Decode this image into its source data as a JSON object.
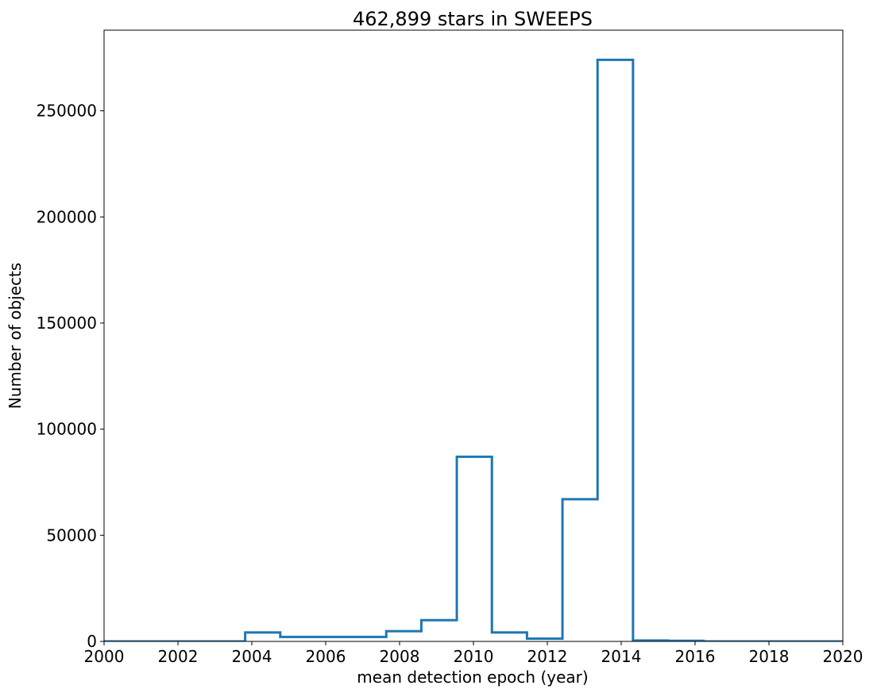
{
  "chart_data": {
    "type": "histogram",
    "title": "462,899 stars in SWEEPS",
    "xlabel": "mean detection epoch (year)",
    "ylabel": "Number of objects",
    "xlim": [
      2000,
      2020
    ],
    "ylim": [
      0,
      288000
    ],
    "x_ticks": [
      2000,
      2002,
      2004,
      2006,
      2008,
      2010,
      2012,
      2014,
      2016,
      2018,
      2020
    ],
    "x_tick_labels": [
      "2000",
      "2002",
      "2004",
      "2006",
      "2008",
      "2010",
      "2012",
      "2014",
      "2016",
      "2018",
      "2020"
    ],
    "y_ticks": [
      0,
      50000,
      100000,
      150000,
      200000,
      250000
    ],
    "y_tick_labels": [
      "0",
      "50000",
      "100000",
      "150000",
      "200000",
      "250000"
    ],
    "bin_edges": [
      1999.9,
      2000.86,
      2001.81,
      2002.77,
      2003.82,
      2004.77,
      2005.73,
      2006.68,
      2007.64,
      2008.59,
      2009.55,
      2010.5,
      2011.45,
      2012.41,
      2013.36,
      2014.32,
      2015.27,
      2016.23,
      2017.18,
      2018.14,
      2019.09,
      2020.05
    ],
    "counts": [
      0,
      0,
      0,
      0,
      4200,
      2100,
      2100,
      2100,
      4800,
      10000,
      87000,
      4200,
      1300,
      67000,
      274000,
      400,
      300,
      0,
      0,
      0,
      0
    ],
    "grid": false,
    "series": [
      {
        "values": [
          0,
          0,
          0,
          0,
          4200,
          2100,
          2100,
          2100,
          4800,
          10000,
          87000,
          4200,
          1300,
          67000,
          274000,
          400,
          300,
          0,
          0,
          0,
          0
        ],
        "color": "#1f77b4"
      }
    ]
  }
}
